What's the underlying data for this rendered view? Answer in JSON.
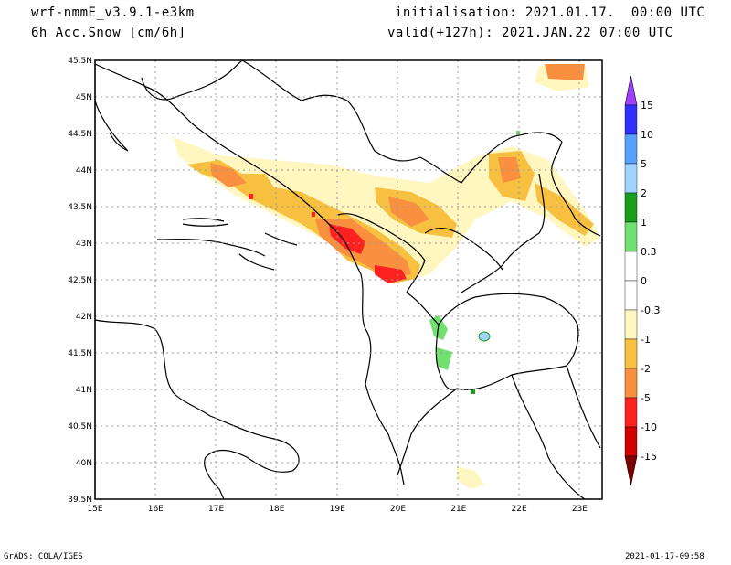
{
  "header": {
    "model": "wrf-nmmE_v3.9.1-e3km",
    "variable": "6h Acc.Snow [cm/6h]",
    "init": "initialisation: 2021.01.17.  00:00 UTC",
    "valid": "valid(+127h): 2021.JAN.22 07:00 UTC"
  },
  "footer": {
    "left": "GrADS: COLA/IGES",
    "right": "2021-01-17-09:58"
  },
  "map": {
    "lon_labels": [
      "15E",
      "16E",
      "17E",
      "18E",
      "19E",
      "20E",
      "21E",
      "22E",
      "23E"
    ],
    "lat_labels": [
      "45.5N",
      "45N",
      "44.5N",
      "44N",
      "43.5N",
      "43N",
      "42.5N",
      "42N",
      "41.5N",
      "41N",
      "40.5N",
      "40N",
      "39.5N"
    ],
    "lon_range": [
      15,
      23.3
    ],
    "lat_range": [
      39.5,
      45.5
    ],
    "grid": "dotted"
  },
  "colorbar": {
    "labels": [
      "15",
      "10",
      "5",
      "2",
      "1",
      "0.3",
      "0",
      "-0.3",
      "-1",
      "-2",
      "-5",
      "-10",
      "-15"
    ],
    "colors": [
      "#3030ff",
      "#5aa0ff",
      "#a0d4ff",
      "#1a9e1a",
      "#70e070",
      "#ffffff",
      "#ffffff",
      "#fff6c0",
      "#f8c040",
      "#f89040",
      "#ff2020",
      "#d00000",
      "#900000"
    ],
    "top_arrow_color": "#a040ff",
    "bottom_arrow_color": "#800000"
  }
}
